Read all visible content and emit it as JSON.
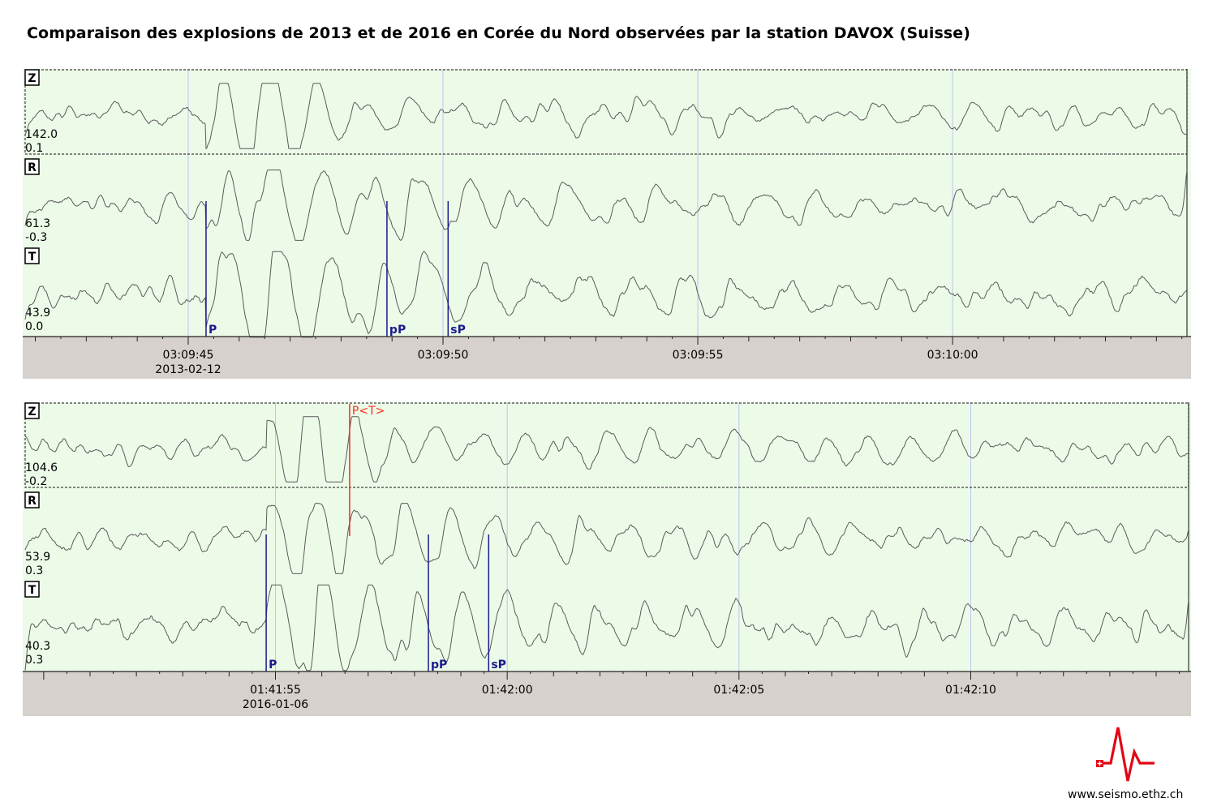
{
  "title": "Comparaison des explosions de 2013 et de 2016 en Corée du Nord observées par la station DAVOX (Suisse)",
  "website": "www.seismo.ethz.ch",
  "colors": {
    "trace_bg": "#ecfbe8",
    "axis_bg": "#d6d1cc",
    "trace": "#5a5a5a",
    "phase_pick": "#1a1a8c",
    "theory_pick": "#ff2a1a",
    "gridline": "#b9c4ee",
    "logo": "#e30613"
  },
  "chart_data": [
    {
      "type": "line",
      "chart": "seismogram",
      "date_label": "2013-02-12",
      "time_window": [
        "03:09:41.8",
        "03:10:04.6"
      ],
      "x_ticks": [
        "03:09:45",
        "03:09:50",
        "03:09:55",
        "03:10:00"
      ],
      "minor_tick_interval_s": 0.5,
      "channels": [
        {
          "name": "Z",
          "max_label": "142.0",
          "min_label": "0.1"
        },
        {
          "name": "R",
          "max_label": "61.3",
          "min_label": "-0.3"
        },
        {
          "name": "T",
          "max_label": "43.9",
          "min_label": "0.0"
        }
      ],
      "picks": [
        {
          "label": "P",
          "time": "03:09:45.35",
          "color": "phase_pick"
        },
        {
          "label": "pP",
          "time": "03:09:48.9",
          "color": "phase_pick"
        },
        {
          "label": "sP",
          "time": "03:09:50.1",
          "color": "phase_pick"
        }
      ]
    },
    {
      "type": "line",
      "chart": "seismogram",
      "date_label": "2016-01-06",
      "time_window": [
        "01:41:49.6",
        "01:42:14.7"
      ],
      "x_ticks": [
        "01:41:55",
        "01:42:00",
        "01:42:05",
        "01:42:10"
      ],
      "minor_tick_interval_s": 0.5,
      "channels": [
        {
          "name": "Z",
          "max_label": "104.6",
          "min_label": "-0.2"
        },
        {
          "name": "R",
          "max_label": "53.9",
          "min_label": "0.3"
        },
        {
          "name": "T",
          "max_label": "40.3",
          "min_label": "0.3"
        }
      ],
      "picks": [
        {
          "label": "P",
          "time": "01:41:54.8",
          "color": "phase_pick"
        },
        {
          "label": "pP",
          "time": "01:41:58.3",
          "color": "phase_pick"
        },
        {
          "label": "sP",
          "time": "01:41:59.6",
          "color": "phase_pick"
        },
        {
          "label": "P<T>",
          "time": "01:41:56.6",
          "color": "theory_pick"
        }
      ]
    }
  ]
}
